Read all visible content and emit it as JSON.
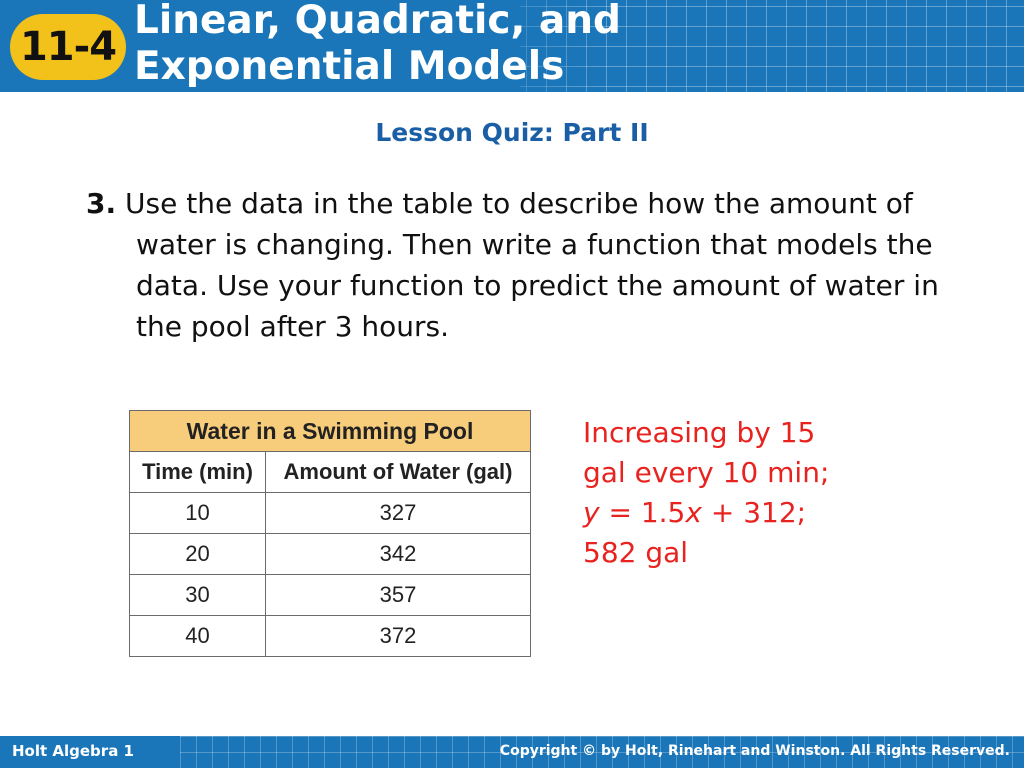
{
  "header": {
    "badge": "11-4",
    "title_line1": "Linear, Quadratic, and",
    "title_line2": "Exponential Models",
    "color": "#1a76b8",
    "badge_color": "#f3c21a"
  },
  "lesson_title": "Lesson Quiz: Part II",
  "question": {
    "number": "3.",
    "text": "Use the data in the table to describe how the amount of water is changing. Then write a function that models the data. Use your function to predict the amount of water in the pool after 3 hours."
  },
  "table": {
    "caption": "Water in a Swimming Pool",
    "headers": [
      "Time (min)",
      "Amount of Water (gal)"
    ],
    "rows": [
      [
        "10",
        "327"
      ],
      [
        "20",
        "342"
      ],
      [
        "30",
        "357"
      ],
      [
        "40",
        "372"
      ]
    ],
    "caption_color": "#f7cc7a"
  },
  "answer": {
    "line1": "Increasing by 15",
    "line2": "gal every 10 min;",
    "line3_var_y": "y",
    "line3_mid": " = 1.5",
    "line3_var_x": "x",
    "line3_end": " + 312;",
    "line4": "582 gal",
    "color": "#e8231f"
  },
  "footer": {
    "left": "Holt Algebra 1",
    "right": "Copyright © by Holt, Rinehart and Winston. All Rights Reserved."
  }
}
